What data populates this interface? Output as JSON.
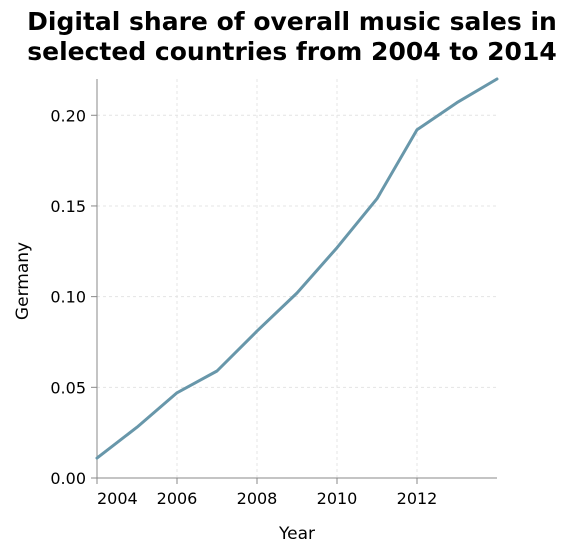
{
  "chart_data": {
    "type": "line",
    "title_lines": [
      "Digital share of overall music sales in",
      "selected countries from 2004 to 2014"
    ],
    "xlabel": "Year",
    "ylabel": "Germany",
    "x_ticks": [
      2004,
      2006,
      2008,
      2010,
      2012
    ],
    "y_ticks": [
      "0.00",
      "0.05",
      "0.10",
      "0.15",
      "0.20"
    ],
    "xlim": [
      2004,
      2014
    ],
    "ylim": [
      0,
      0.22
    ],
    "grid": true,
    "series": [
      {
        "x": [
          2004,
          2005,
          2006,
          2007,
          2008,
          2009,
          2010,
          2011,
          2012,
          2013,
          2014
        ],
        "values": [
          0.011,
          0.028,
          0.047,
          0.059,
          0.081,
          0.102,
          0.127,
          0.154,
          0.192,
          0.207,
          0.22
        ],
        "color": "#6897aa"
      }
    ]
  }
}
